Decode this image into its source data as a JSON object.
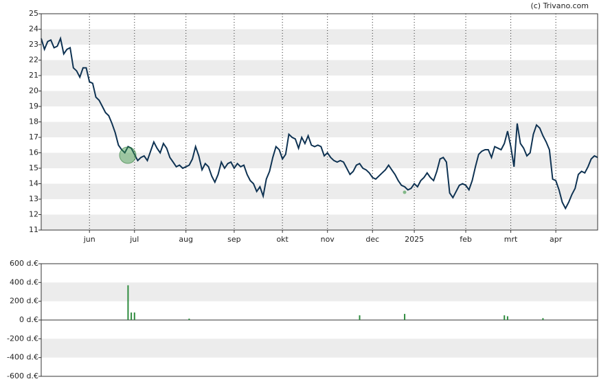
{
  "credit": "(c) Trivano.com",
  "chart_data": [
    {
      "type": "line",
      "categories": [
        null,
        null,
        null,
        null,
        null,
        null,
        null,
        null,
        null,
        null,
        null,
        null,
        null,
        null,
        null,
        "jun",
        null,
        null,
        null,
        null,
        null,
        null,
        null,
        null,
        null,
        null,
        null,
        null,
        null,
        "jul",
        null,
        null,
        null,
        null,
        null,
        null,
        null,
        null,
        null,
        null,
        null,
        null,
        null,
        null,
        null,
        "aug",
        null,
        null,
        null,
        null,
        null,
        null,
        null,
        null,
        null,
        null,
        null,
        null,
        null,
        null,
        "sep",
        null,
        null,
        null,
        null,
        null,
        null,
        null,
        null,
        null,
        null,
        null,
        null,
        null,
        null,
        "okt",
        null,
        null,
        null,
        null,
        null,
        null,
        null,
        null,
        null,
        null,
        null,
        null,
        null,
        "nov",
        null,
        null,
        null,
        null,
        null,
        null,
        null,
        null,
        null,
        null,
        null,
        null,
        null,
        "dec",
        null,
        null,
        null,
        null,
        null,
        null,
        null,
        null,
        null,
        null,
        null,
        null,
        "2025",
        null,
        null,
        null,
        null,
        null,
        null,
        null,
        null,
        null,
        null,
        null,
        null,
        null,
        null,
        null,
        "feb",
        null,
        null,
        null,
        null,
        null,
        null,
        null,
        null,
        null,
        null,
        null,
        null,
        null,
        "mrt",
        null,
        null,
        null,
        null,
        null,
        null,
        null,
        null,
        null,
        null,
        null,
        null,
        null,
        "apr",
        null,
        null,
        null,
        null,
        null,
        null,
        null,
        null,
        null,
        null,
        null,
        null,
        null
      ],
      "series": [
        {
          "color": "#0e3252",
          "values": [
            23.4,
            22.7,
            23.2,
            23.3,
            22.8,
            22.9,
            23.4,
            22.4,
            22.7,
            22.8,
            21.5,
            21.3,
            20.9,
            21.5,
            21.5,
            20.6,
            20.5,
            19.6,
            19.4,
            19.0,
            18.6,
            18.4,
            17.9,
            17.3,
            16.5,
            16.2,
            16.0,
            16.4,
            16.3,
            15.9,
            15.5,
            15.7,
            15.8,
            15.5,
            16.1,
            16.7,
            16.3,
            16.0,
            16.6,
            16.3,
            15.7,
            15.4,
            15.1,
            15.2,
            15.0,
            15.1,
            15.2,
            15.6,
            16.4,
            15.8,
            14.9,
            15.3,
            15.1,
            14.5,
            14.1,
            14.6,
            15.4,
            15.0,
            15.3,
            15.4,
            15.0,
            15.3,
            15.1,
            15.2,
            14.6,
            14.2,
            14.0,
            13.5,
            13.8,
            13.2,
            14.3,
            14.8,
            15.7,
            16.4,
            16.2,
            15.6,
            15.9,
            17.2,
            17.0,
            16.9,
            16.3,
            17.0,
            16.6,
            17.1,
            16.5,
            16.4,
            16.5,
            16.4,
            15.8,
            16.0,
            15.7,
            15.5,
            15.4,
            15.5,
            15.4,
            15.0,
            14.6,
            14.8,
            15.2,
            15.3,
            15.0,
            14.9,
            14.7,
            14.4,
            14.3,
            14.5,
            14.7,
            14.9,
            15.2,
            14.9,
            14.6,
            14.2,
            13.9,
            13.8,
            13.6,
            13.7,
            14.0,
            13.8,
            14.2,
            14.4,
            14.7,
            14.4,
            14.2,
            14.8,
            15.6,
            15.7,
            15.4,
            13.4,
            13.1,
            13.5,
            13.9,
            14.0,
            13.9,
            13.6,
            14.2,
            15.1,
            15.9,
            16.1,
            16.2,
            16.2,
            15.7,
            16.4,
            16.3,
            16.2,
            16.6,
            17.4,
            16.4,
            15.1,
            17.9,
            16.6,
            16.3,
            15.8,
            16.0,
            17.2,
            17.8,
            17.6,
            17.1,
            16.7,
            16.2,
            14.3,
            14.2,
            13.6,
            12.8,
            12.4,
            12.8,
            13.3,
            13.7,
            14.6,
            14.8,
            14.7,
            15.1,
            15.6,
            15.8,
            15.7
          ]
        }
      ],
      "ylim": [
        11,
        25
      ],
      "yticks": [
        11,
        12,
        13,
        14,
        15,
        16,
        17,
        18,
        19,
        20,
        21,
        22,
        23,
        24,
        25
      ],
      "grid": true
    },
    {
      "type": "bar",
      "color": "#2e8b3e",
      "values": [
        0,
        0,
        0,
        0,
        0,
        0,
        0,
        0,
        0,
        0,
        0,
        0,
        0,
        0,
        0,
        0,
        0,
        0,
        0,
        0,
        0,
        0,
        0,
        0,
        0,
        0,
        0,
        370,
        80,
        80,
        0,
        0,
        0,
        0,
        0,
        0,
        0,
        0,
        0,
        0,
        0,
        0,
        0,
        0,
        0,
        0,
        15,
        0,
        0,
        0,
        0,
        0,
        0,
        0,
        0,
        0,
        0,
        0,
        0,
        0,
        0,
        0,
        0,
        0,
        0,
        0,
        0,
        0,
        0,
        0,
        0,
        0,
        0,
        0,
        0,
        0,
        0,
        0,
        0,
        0,
        0,
        0,
        0,
        0,
        0,
        0,
        0,
        0,
        0,
        0,
        0,
        0,
        0,
        0,
        0,
        0,
        0,
        0,
        0,
        50,
        0,
        0,
        0,
        0,
        0,
        0,
        0,
        0,
        0,
        0,
        0,
        0,
        0,
        65,
        0,
        0,
        0,
        0,
        0,
        0,
        0,
        0,
        0,
        0,
        0,
        0,
        0,
        0,
        0,
        0,
        0,
        0,
        0,
        0,
        0,
        0,
        0,
        0,
        0,
        0,
        0,
        0,
        0,
        0,
        50,
        40,
        0,
        0,
        0,
        0,
        0,
        0,
        0,
        0,
        0,
        0,
        20,
        0,
        0,
        0,
        0,
        0,
        0,
        0,
        0,
        0,
        0,
        0,
        0,
        0,
        0,
        0,
        0,
        0
      ],
      "ylim": [
        -600,
        600
      ],
      "yticks": [
        {
          "value": -600,
          "label": "-600 d.€"
        },
        {
          "value": -400,
          "label": "-400 d.€"
        },
        {
          "value": -200,
          "label": "-200 d.€"
        },
        {
          "value": 0,
          "label": "0 d.€"
        },
        {
          "value": 200,
          "label": "200 d.€"
        },
        {
          "value": 400,
          "label": "400 d.€"
        },
        {
          "value": 600,
          "label": "600 d.€"
        }
      ],
      "grid": true
    }
  ]
}
